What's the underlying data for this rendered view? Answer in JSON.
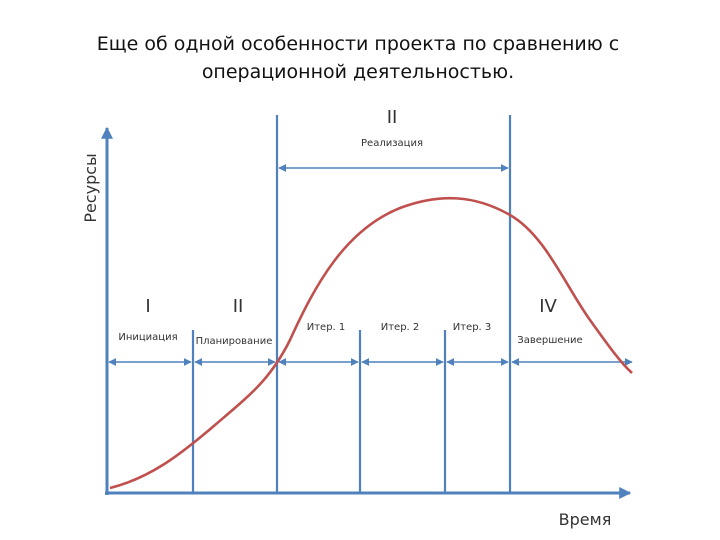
{
  "title_lines": [
    "Еще  об  одной  особенности  проекта  по  сравнению  с",
    "операционной  деятельностью."
  ],
  "axes": {
    "y": "Ресурсы",
    "x": "Время"
  },
  "top_phase": {
    "numeral": "II",
    "label": "Реализация"
  },
  "phases": [
    {
      "numeral": "I",
      "label": "Инициация"
    },
    {
      "numeral": "II",
      "label": "Планирование"
    },
    {
      "label": "Итер. 1"
    },
    {
      "label": "Итер. 2"
    },
    {
      "label": "Итер. 3"
    },
    {
      "numeral": "IV",
      "label": "Завершение"
    }
  ]
}
